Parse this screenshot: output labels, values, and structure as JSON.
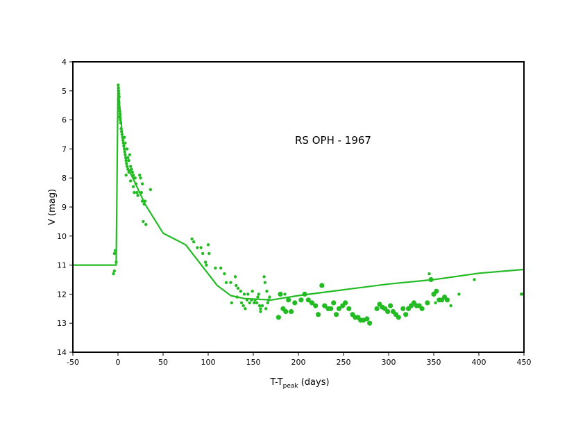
{
  "chart_data": {
    "type": "scatter",
    "title": "",
    "annotation": "RS OPH - 1967",
    "xlabel": {
      "main": "T-T",
      "subscript": "peak",
      "suffix": " (days)"
    },
    "ylabel": "V (mag)",
    "xlim": [
      -50,
      450
    ],
    "ylim": [
      4,
      14
    ],
    "y_inverted": true,
    "xticks": [
      -50,
      0,
      50,
      100,
      150,
      200,
      250,
      300,
      350,
      400,
      450
    ],
    "yticks": [
      4,
      5,
      6,
      7,
      8,
      9,
      10,
      11,
      12,
      13,
      14
    ],
    "grid": false,
    "legend": "none",
    "series_color": "#22bb22",
    "model_curve": [
      [
        -50,
        11.0
      ],
      [
        -2,
        11.0
      ],
      [
        0,
        4.85
      ],
      [
        5,
        6.6
      ],
      [
        10,
        7.6
      ],
      [
        18,
        8.1
      ],
      [
        30,
        8.9
      ],
      [
        50,
        9.9
      ],
      [
        75,
        10.3
      ],
      [
        95,
        11.1
      ],
      [
        110,
        11.7
      ],
      [
        125,
        12.05
      ],
      [
        140,
        12.15
      ],
      [
        170,
        12.2
      ],
      [
        200,
        12.05
      ],
      [
        250,
        11.85
      ],
      [
        300,
        11.65
      ],
      [
        350,
        11.5
      ],
      [
        400,
        11.28
      ],
      [
        450,
        11.15
      ]
    ],
    "points_small": [
      [
        -4,
        10.6
      ],
      [
        -3,
        10.5
      ],
      [
        -5,
        11.3
      ],
      [
        -4,
        11.2
      ],
      [
        -2,
        10.9
      ],
      [
        0.3,
        4.8
      ],
      [
        0.5,
        4.9
      ],
      [
        0.8,
        5.0
      ],
      [
        1,
        5.1
      ],
      [
        1.3,
        5.2
      ],
      [
        0.6,
        5.3
      ],
      [
        1.1,
        5.4
      ],
      [
        0.9,
        5.5
      ],
      [
        1.5,
        5.6
      ],
      [
        2,
        5.7
      ],
      [
        2.3,
        5.8
      ],
      [
        1.7,
        5.9
      ],
      [
        2.5,
        6.0
      ],
      [
        3,
        6.1
      ],
      [
        3.5,
        6.3
      ],
      [
        4,
        6.4
      ],
      [
        4.5,
        6.5
      ],
      [
        5,
        6.6
      ],
      [
        5.5,
        6.7
      ],
      [
        6,
        6.8
      ],
      [
        6.5,
        6.9
      ],
      [
        7,
        7.0
      ],
      [
        7.5,
        7.1
      ],
      [
        8,
        7.2
      ],
      [
        8.5,
        7.3
      ],
      [
        9,
        7.4
      ],
      [
        9.5,
        7.5
      ],
      [
        10,
        7.6
      ],
      [
        11,
        7.7
      ],
      [
        12,
        7.8
      ],
      [
        13,
        7.75
      ],
      [
        14,
        7.6
      ],
      [
        15,
        7.7
      ],
      [
        16,
        7.8
      ],
      [
        17,
        7.9
      ],
      [
        18,
        8.0
      ],
      [
        7,
        6.6
      ],
      [
        8,
        6.8
      ],
      [
        10,
        7.0
      ],
      [
        11,
        7.3
      ],
      [
        12,
        7.4
      ],
      [
        13,
        7.2
      ],
      [
        9,
        7.9
      ],
      [
        14,
        8.1
      ],
      [
        17,
        8.3
      ],
      [
        18,
        8.5
      ],
      [
        20,
        8.2
      ],
      [
        21,
        8.5
      ],
      [
        22,
        8.6
      ],
      [
        24,
        7.9
      ],
      [
        25,
        8.0
      ],
      [
        26,
        8.5
      ],
      [
        27,
        8.8
      ],
      [
        29,
        8.9
      ],
      [
        30,
        8.8
      ],
      [
        28,
        9.5
      ],
      [
        31,
        9.6
      ],
      [
        36,
        8.4
      ],
      [
        27,
        8.2
      ],
      [
        19,
        8.0
      ],
      [
        82,
        10.1
      ],
      [
        84,
        10.2
      ],
      [
        88,
        10.4
      ],
      [
        92,
        10.4
      ],
      [
        94,
        10.6
      ],
      [
        100,
        10.3
      ],
      [
        101,
        10.6
      ],
      [
        97,
        10.9
      ],
      [
        98,
        11.0
      ],
      [
        108,
        11.1
      ],
      [
        114,
        11.1
      ],
      [
        118,
        11.3
      ],
      [
        120,
        11.6
      ],
      [
        125,
        11.6
      ],
      [
        130,
        11.4
      ],
      [
        131,
        11.7
      ],
      [
        133,
        11.8
      ],
      [
        136,
        11.9
      ],
      [
        140,
        12.0
      ],
      [
        139,
        12.4
      ],
      [
        143,
        12.2
      ],
      [
        146,
        12.3
      ],
      [
        148,
        12.2
      ],
      [
        152,
        12.2
      ],
      [
        154,
        12.3
      ],
      [
        155,
        12.1
      ],
      [
        157,
        12.4
      ],
      [
        158,
        12.5
      ],
      [
        160,
        12.4
      ],
      [
        162,
        11.4
      ],
      [
        163,
        11.6
      ],
      [
        165,
        11.9
      ],
      [
        167,
        12.2
      ],
      [
        164,
        12.5
      ],
      [
        156,
        12.0
      ],
      [
        158,
        12.6
      ],
      [
        126,
        12.3
      ],
      [
        132,
        12.1
      ],
      [
        137,
        12.3
      ],
      [
        141,
        12.5
      ],
      [
        144,
        12.0
      ],
      [
        149,
        11.9
      ],
      [
        151,
        12.3
      ],
      [
        166,
        12.3
      ],
      [
        168,
        12.1
      ],
      [
        185,
        12.0
      ],
      [
        345,
        11.3
      ],
      [
        378,
        12.0
      ],
      [
        395,
        11.5
      ],
      [
        448,
        12.0
      ],
      [
        447,
        12.0
      ],
      [
        352,
        12.3
      ],
      [
        369,
        12.4
      ]
    ],
    "points_large": [
      [
        178,
        12.8
      ],
      [
        180,
        12.0
      ],
      [
        183,
        12.5
      ],
      [
        186,
        12.6
      ],
      [
        189,
        12.2
      ],
      [
        192,
        12.6
      ],
      [
        196,
        12.3
      ],
      [
        203,
        12.2
      ],
      [
        207,
        12.0
      ],
      [
        211,
        12.2
      ],
      [
        215,
        12.3
      ],
      [
        219,
        12.4
      ],
      [
        222,
        12.7
      ],
      [
        226,
        11.7
      ],
      [
        229,
        12.4
      ],
      [
        233,
        12.5
      ],
      [
        236,
        12.5
      ],
      [
        239,
        12.3
      ],
      [
        242,
        12.7
      ],
      [
        245,
        12.5
      ],
      [
        249,
        12.4
      ],
      [
        252,
        12.3
      ],
      [
        256,
        12.5
      ],
      [
        260,
        12.7
      ],
      [
        263,
        12.8
      ],
      [
        266,
        12.8
      ],
      [
        269,
        12.9
      ],
      [
        272,
        12.9
      ],
      [
        276,
        12.85
      ],
      [
        279,
        13.0
      ],
      [
        287,
        12.5
      ],
      [
        290,
        12.35
      ],
      [
        293,
        12.45
      ],
      [
        296,
        12.5
      ],
      [
        299,
        12.6
      ],
      [
        302,
        12.4
      ],
      [
        305,
        12.6
      ],
      [
        308,
        12.7
      ],
      [
        311,
        12.8
      ],
      [
        316,
        12.5
      ],
      [
        319,
        12.7
      ],
      [
        322,
        12.5
      ],
      [
        325,
        12.4
      ],
      [
        328,
        12.3
      ],
      [
        331,
        12.4
      ],
      [
        334,
        12.4
      ],
      [
        337,
        12.5
      ],
      [
        343,
        12.3
      ],
      [
        347,
        11.5
      ],
      [
        350,
        12.0
      ],
      [
        353,
        11.9
      ],
      [
        356,
        12.2
      ],
      [
        359,
        12.2
      ],
      [
        362,
        12.1
      ],
      [
        365,
        12.2
      ]
    ]
  }
}
